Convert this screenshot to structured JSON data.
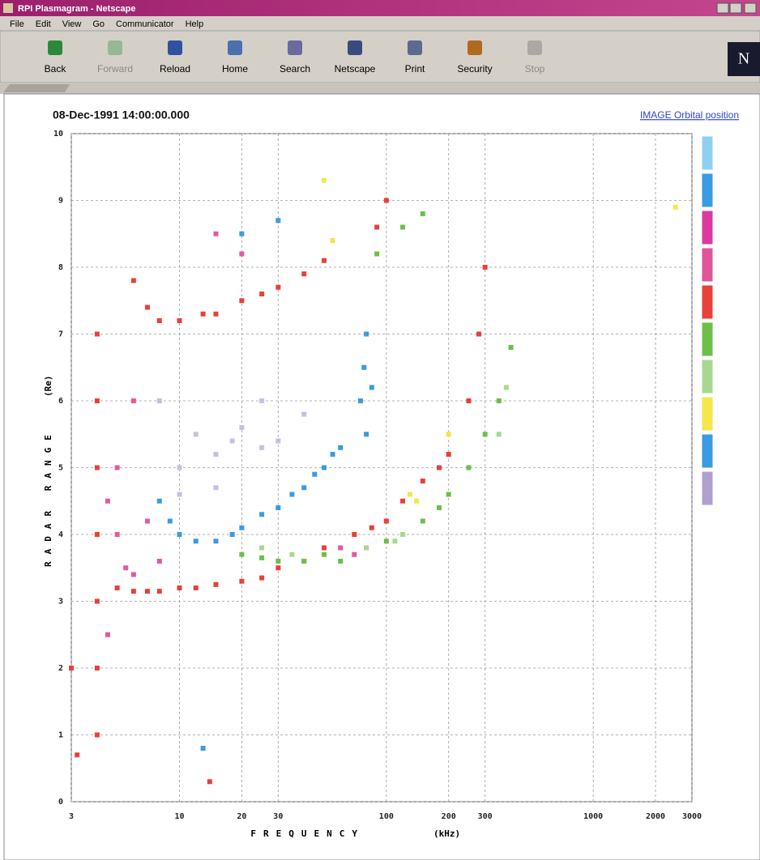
{
  "window": {
    "title": "RPI Plasmagram - Netscape"
  },
  "menu": [
    "File",
    "Edit",
    "View",
    "Go",
    "Communicator",
    "Help"
  ],
  "toolbar": [
    {
      "label": "Back"
    },
    {
      "label": "Forward",
      "disabled": true
    },
    {
      "label": "Reload"
    },
    {
      "label": "Home"
    },
    {
      "label": "Search"
    },
    {
      "label": "Netscape"
    },
    {
      "label": "Print"
    },
    {
      "label": "Security"
    },
    {
      "label": "Stop",
      "disabled": true
    }
  ],
  "logo": "N",
  "link": "IMAGE Orbital position",
  "chart_data": {
    "type": "scatter",
    "title": "08-Dec-1991 14:00:00.000",
    "xlabel": "FREQUENCY",
    "xunit": "(kHz)",
    "ylabel": "RADAR RANGE",
    "yunit": "(Re)",
    "xscale": "log",
    "xlim": [
      3,
      3000
    ],
    "ylim": [
      0,
      10
    ],
    "xticks": [
      3,
      10,
      20,
      30,
      100,
      200,
      300,
      1000,
      2000,
      3000
    ],
    "yticks": [
      0,
      1,
      2,
      3,
      4,
      5,
      6,
      7,
      8,
      9,
      10
    ],
    "grid": true,
    "colorbar": [
      "#8fd0f0",
      "#3b9be0",
      "#d83aa0",
      "#e0559a",
      "#e8403a",
      "#6cc04a",
      "#a8d890",
      "#f5e64a",
      "#3b9be0",
      "#b0a0d0"
    ],
    "series": [
      {
        "color": "#e8403a",
        "x": [
          5,
          6,
          7,
          8,
          10,
          12,
          15,
          20,
          25,
          30,
          40,
          50,
          70,
          85,
          100,
          120,
          150,
          180,
          200,
          250,
          280,
          300,
          6,
          7,
          8,
          10,
          13,
          15,
          20,
          25,
          30,
          40,
          50,
          90,
          100,
          4,
          4,
          4,
          4,
          4,
          4,
          4,
          3,
          3.2,
          14
        ],
        "values": [
          3.2,
          3.15,
          3.15,
          3.15,
          3.2,
          3.2,
          3.25,
          3.3,
          3.35,
          3.5,
          3.6,
          3.8,
          4.0,
          4.1,
          4.2,
          4.5,
          4.8,
          5.0,
          5.2,
          6.0,
          7.0,
          8.0,
          7.8,
          7.4,
          7.2,
          7.2,
          7.3,
          7.3,
          7.5,
          7.6,
          7.7,
          7.9,
          8.1,
          8.6,
          9.0,
          1.0,
          2.0,
          3.0,
          4.0,
          5.0,
          6.0,
          7.0,
          2.0,
          0.7,
          0.3
        ]
      },
      {
        "color": "#e05aa0",
        "x": [
          4.5,
          5,
          5,
          5.5,
          6,
          6,
          7,
          8,
          4.5,
          60,
          70,
          15,
          20
        ],
        "values": [
          2.5,
          4.0,
          5.0,
          3.5,
          6.0,
          3.4,
          4.2,
          3.6,
          4.5,
          3.8,
          3.7,
          8.5,
          8.2
        ]
      },
      {
        "color": "#3b9be0",
        "x": [
          8,
          9,
          10,
          12,
          15,
          18,
          20,
          25,
          30,
          35,
          40,
          45,
          50,
          55,
          60,
          75,
          78,
          80,
          80,
          85,
          13,
          20,
          30
        ],
        "values": [
          4.5,
          4.2,
          4.0,
          3.9,
          3.9,
          4.0,
          4.1,
          4.3,
          4.4,
          4.6,
          4.7,
          4.9,
          5.0,
          5.2,
          5.3,
          6.0,
          6.5,
          7.0,
          5.5,
          6.2,
          0.8,
          8.5,
          8.7
        ]
      },
      {
        "color": "#6cc04a",
        "x": [
          20,
          25,
          30,
          40,
          50,
          60,
          80,
          100,
          120,
          150,
          180,
          200,
          250,
          300,
          350,
          400,
          90,
          120,
          150
        ],
        "values": [
          3.7,
          3.65,
          3.6,
          3.6,
          3.7,
          3.6,
          3.8,
          3.9,
          4.0,
          4.2,
          4.4,
          4.6,
          5.0,
          5.5,
          6.0,
          6.8,
          8.2,
          8.6,
          8.8
        ]
      },
      {
        "color": "#a8d890",
        "x": [
          25,
          35,
          80,
          110,
          120,
          350,
          380
        ],
        "values": [
          3.8,
          3.7,
          3.8,
          3.9,
          4.0,
          5.5,
          6.2
        ]
      },
      {
        "color": "#c8c0e0",
        "x": [
          8,
          10,
          12,
          15,
          18,
          20,
          25,
          30,
          40,
          10,
          15,
          25
        ],
        "values": [
          6.0,
          5.0,
          5.5,
          5.2,
          5.4,
          5.6,
          5.3,
          5.4,
          5.8,
          4.6,
          4.7,
          6.0
        ]
      },
      {
        "color": "#f5e64a",
        "x": [
          50,
          55,
          130,
          140,
          200,
          2500
        ],
        "values": [
          9.3,
          8.4,
          4.6,
          4.5,
          5.5,
          8.9
        ]
      }
    ]
  }
}
